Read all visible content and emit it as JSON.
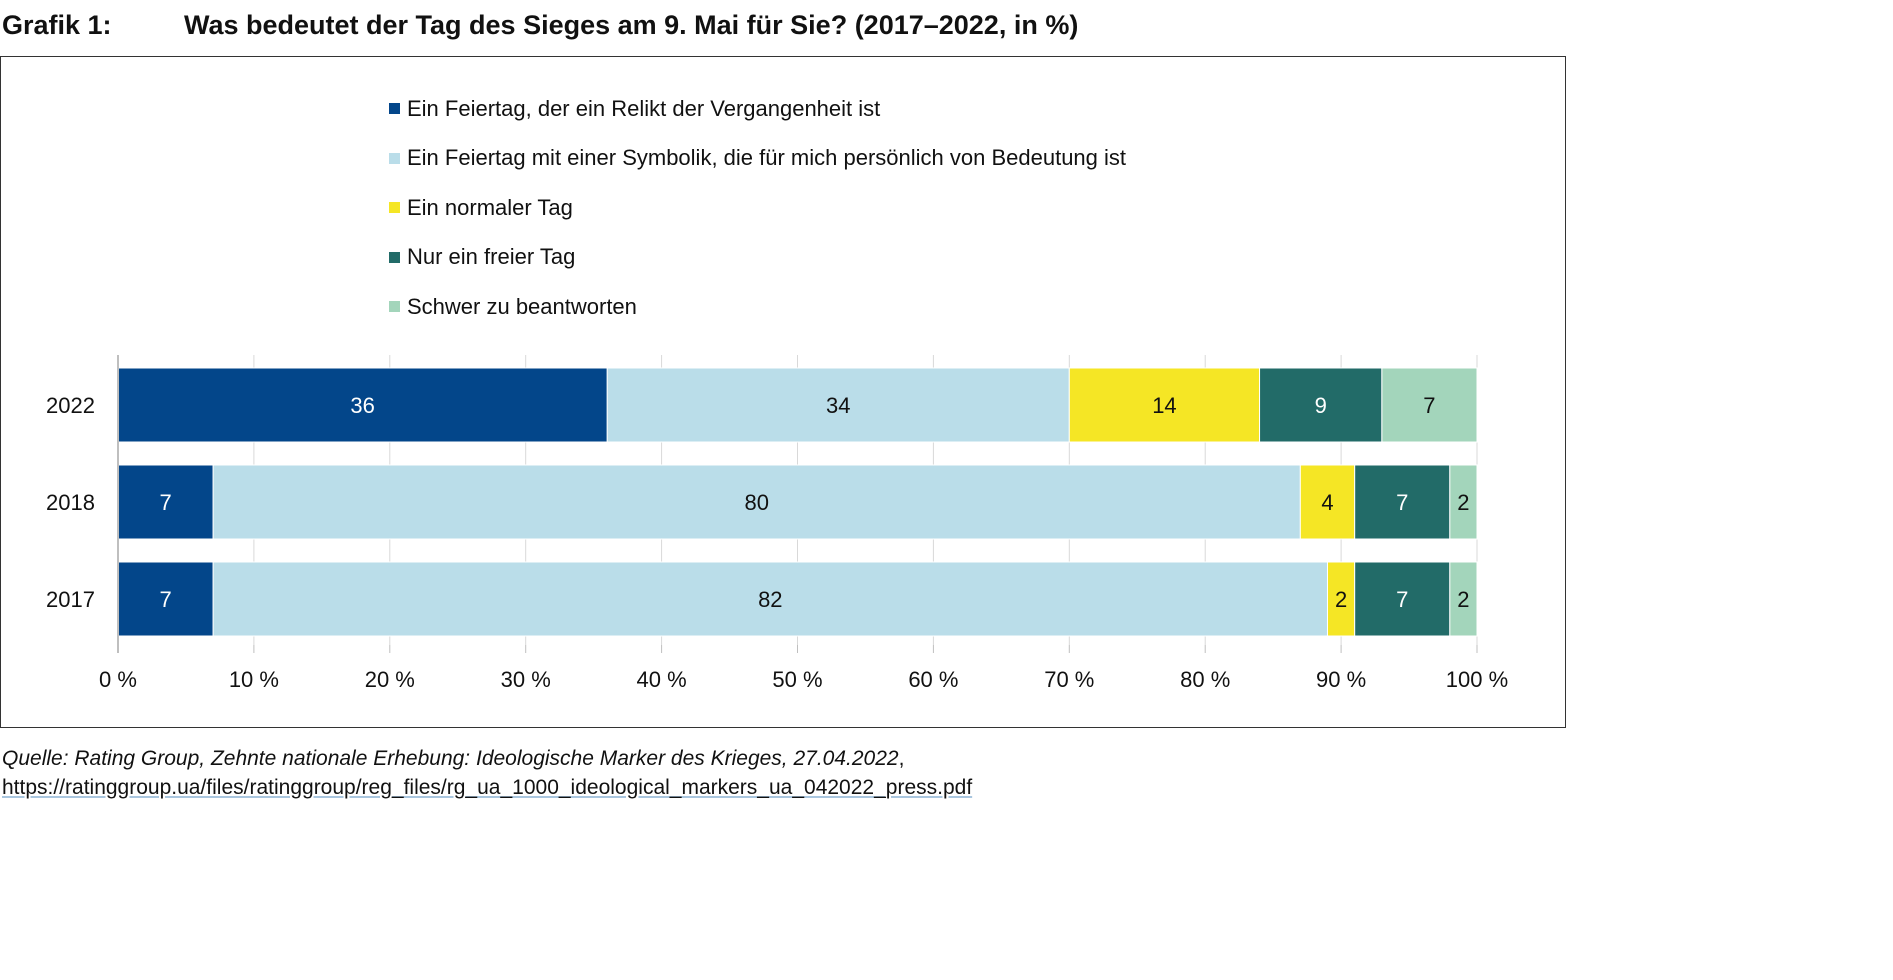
{
  "header": {
    "label": "Grafik 1:",
    "title": "Was bedeutet der Tag des Sieges am 9. Mai für Sie? (2017–2022, in %)"
  },
  "chart_data": {
    "type": "bar",
    "orientation": "horizontal",
    "stacked": true,
    "title": "Was bedeutet der Tag des Sieges am 9. Mai für Sie? (2017–2022, in %)",
    "xlabel": "",
    "ylabel": "",
    "xlim": [
      0,
      100
    ],
    "categories": [
      "2022",
      "2018",
      "2017"
    ],
    "x_ticks": [
      "0 %",
      "10 %",
      "20 %",
      "30 %",
      "40 %",
      "50 %",
      "60 %",
      "70 %",
      "80 %",
      "90 %",
      "100 %"
    ],
    "legend_position": "top",
    "series": [
      {
        "name": "Ein Feiertag, der ein Relikt der Vergangenheit ist",
        "color": "#03468a",
        "label_color": "#ffffff",
        "values": [
          36,
          7,
          7
        ]
      },
      {
        "name": "Ein Feiertag mit einer Symbolik, die für mich persönlich von Bedeutung ist",
        "color": "#badde9",
        "label_color": "#111111",
        "values": [
          34,
          80,
          82
        ]
      },
      {
        "name": "Ein normaler Tag",
        "color": "#f5e625",
        "label_color": "#111111",
        "values": [
          14,
          4,
          2
        ]
      },
      {
        "name": "Nur ein freier Tag",
        "color": "#226b68",
        "label_color": "#ffffff",
        "values": [
          9,
          7,
          7
        ]
      },
      {
        "name": "Schwer zu beantworten",
        "color": "#a3d5bb",
        "label_color": "#111111",
        "values": [
          7,
          2,
          2
        ]
      }
    ]
  },
  "source": {
    "prefix": "Quelle: ",
    "citation": "Rating Group, Zehnte nationale Erhebung: Ideologische Marker des Krieges, 27.04.2022",
    "separator": ", ",
    "url": "https://ratinggroup.ua/files/ratinggroup/reg_files/rg_ua_1000_ideological_markers_ua_042022_press.pdf"
  }
}
